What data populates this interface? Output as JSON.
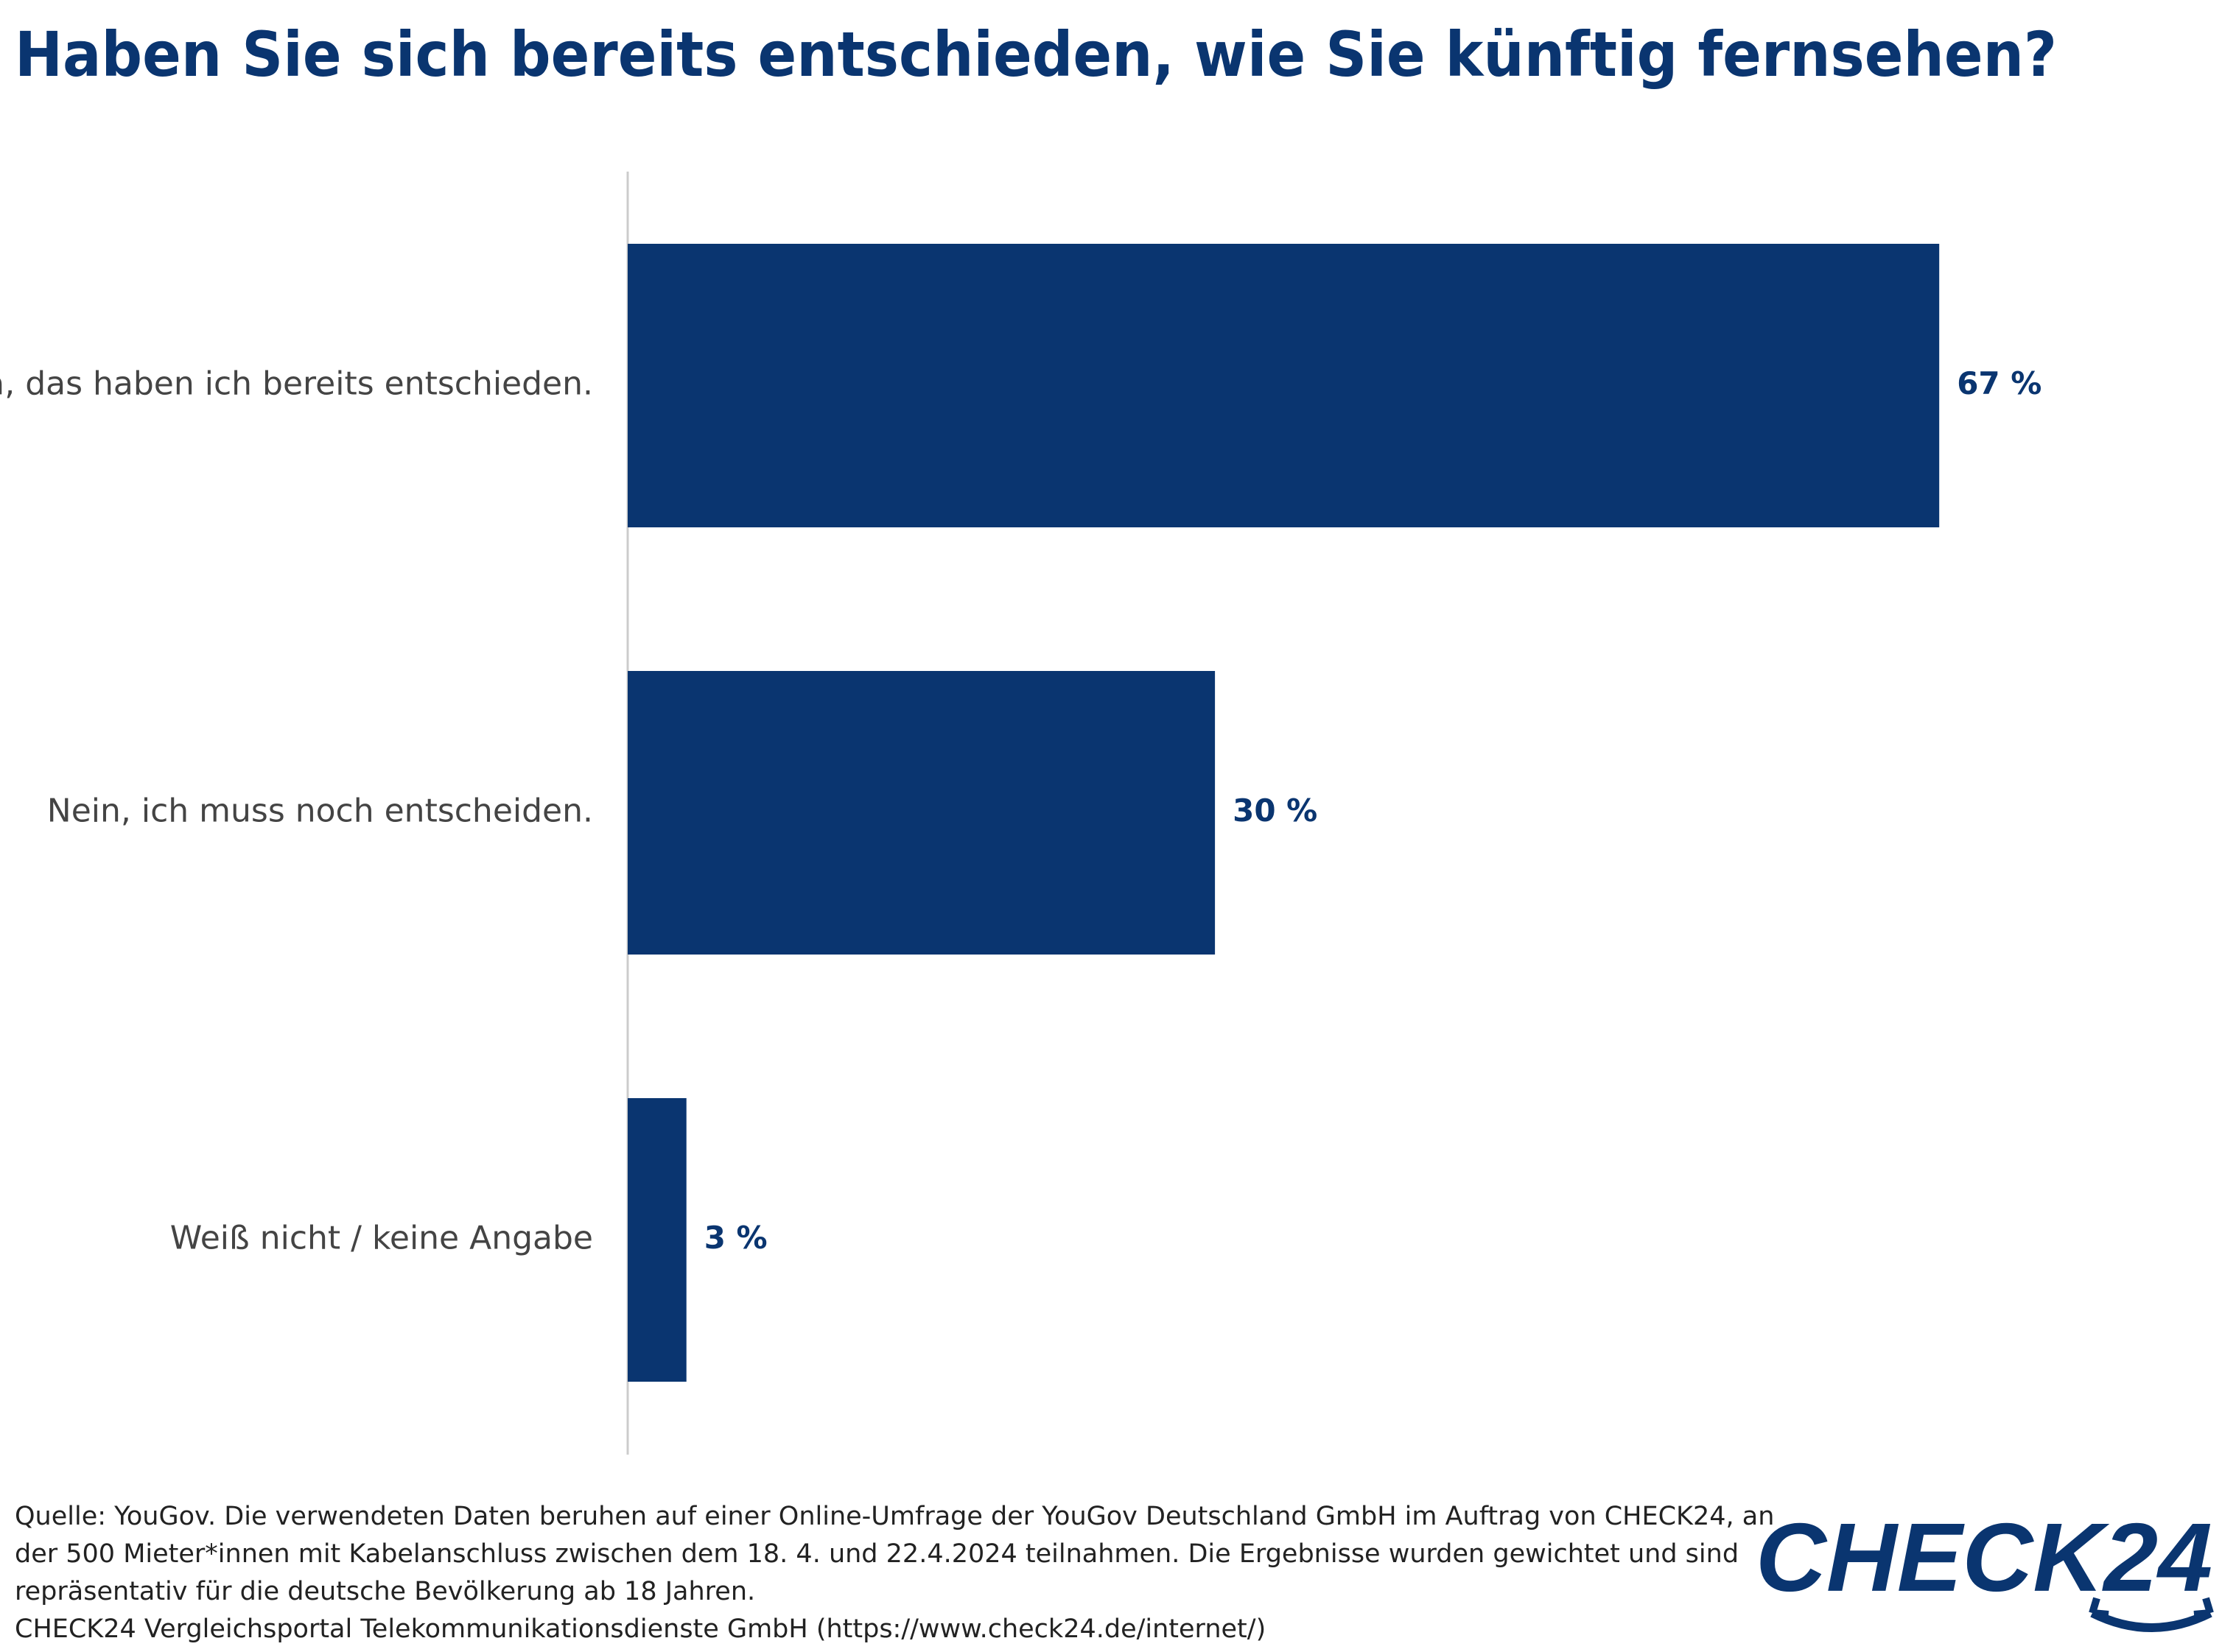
{
  "chart_data": {
    "type": "hbar",
    "title": "Haben Sie sich bereits entschieden, wie Sie künftig fernsehen?",
    "categories": [
      "Ja, das haben ich bereits entschieden.",
      "Nein, ich muss noch entscheiden.",
      "Weiß nicht / keine Angabe"
    ],
    "values": [
      67,
      30,
      3
    ],
    "value_labels": [
      "67 %",
      "30 %",
      "3 %"
    ],
    "color": "#0a3570",
    "notes": [
      "Quelle: YouGov. Die verwendeten Daten beruhen auf einer Online-Umfrage der YouGov Deutschland GmbH im Auftrag von CHECK24, an",
      "der 500 Mieter*innen mit Kabelanschluss zwischen dem 18. 4. und 22.4.2024 teilnahmen. Die Ergebnisse wurden gewichtet und sind",
      "repräsentativ für die deutsche Bevölkerung ab 18 Jahren.",
      "CHECK24 Vergleichsportal Telekommunikationsdienste GmbH (https://www.check24.de/internet/)"
    ],
    "logo": "CHECK24"
  }
}
